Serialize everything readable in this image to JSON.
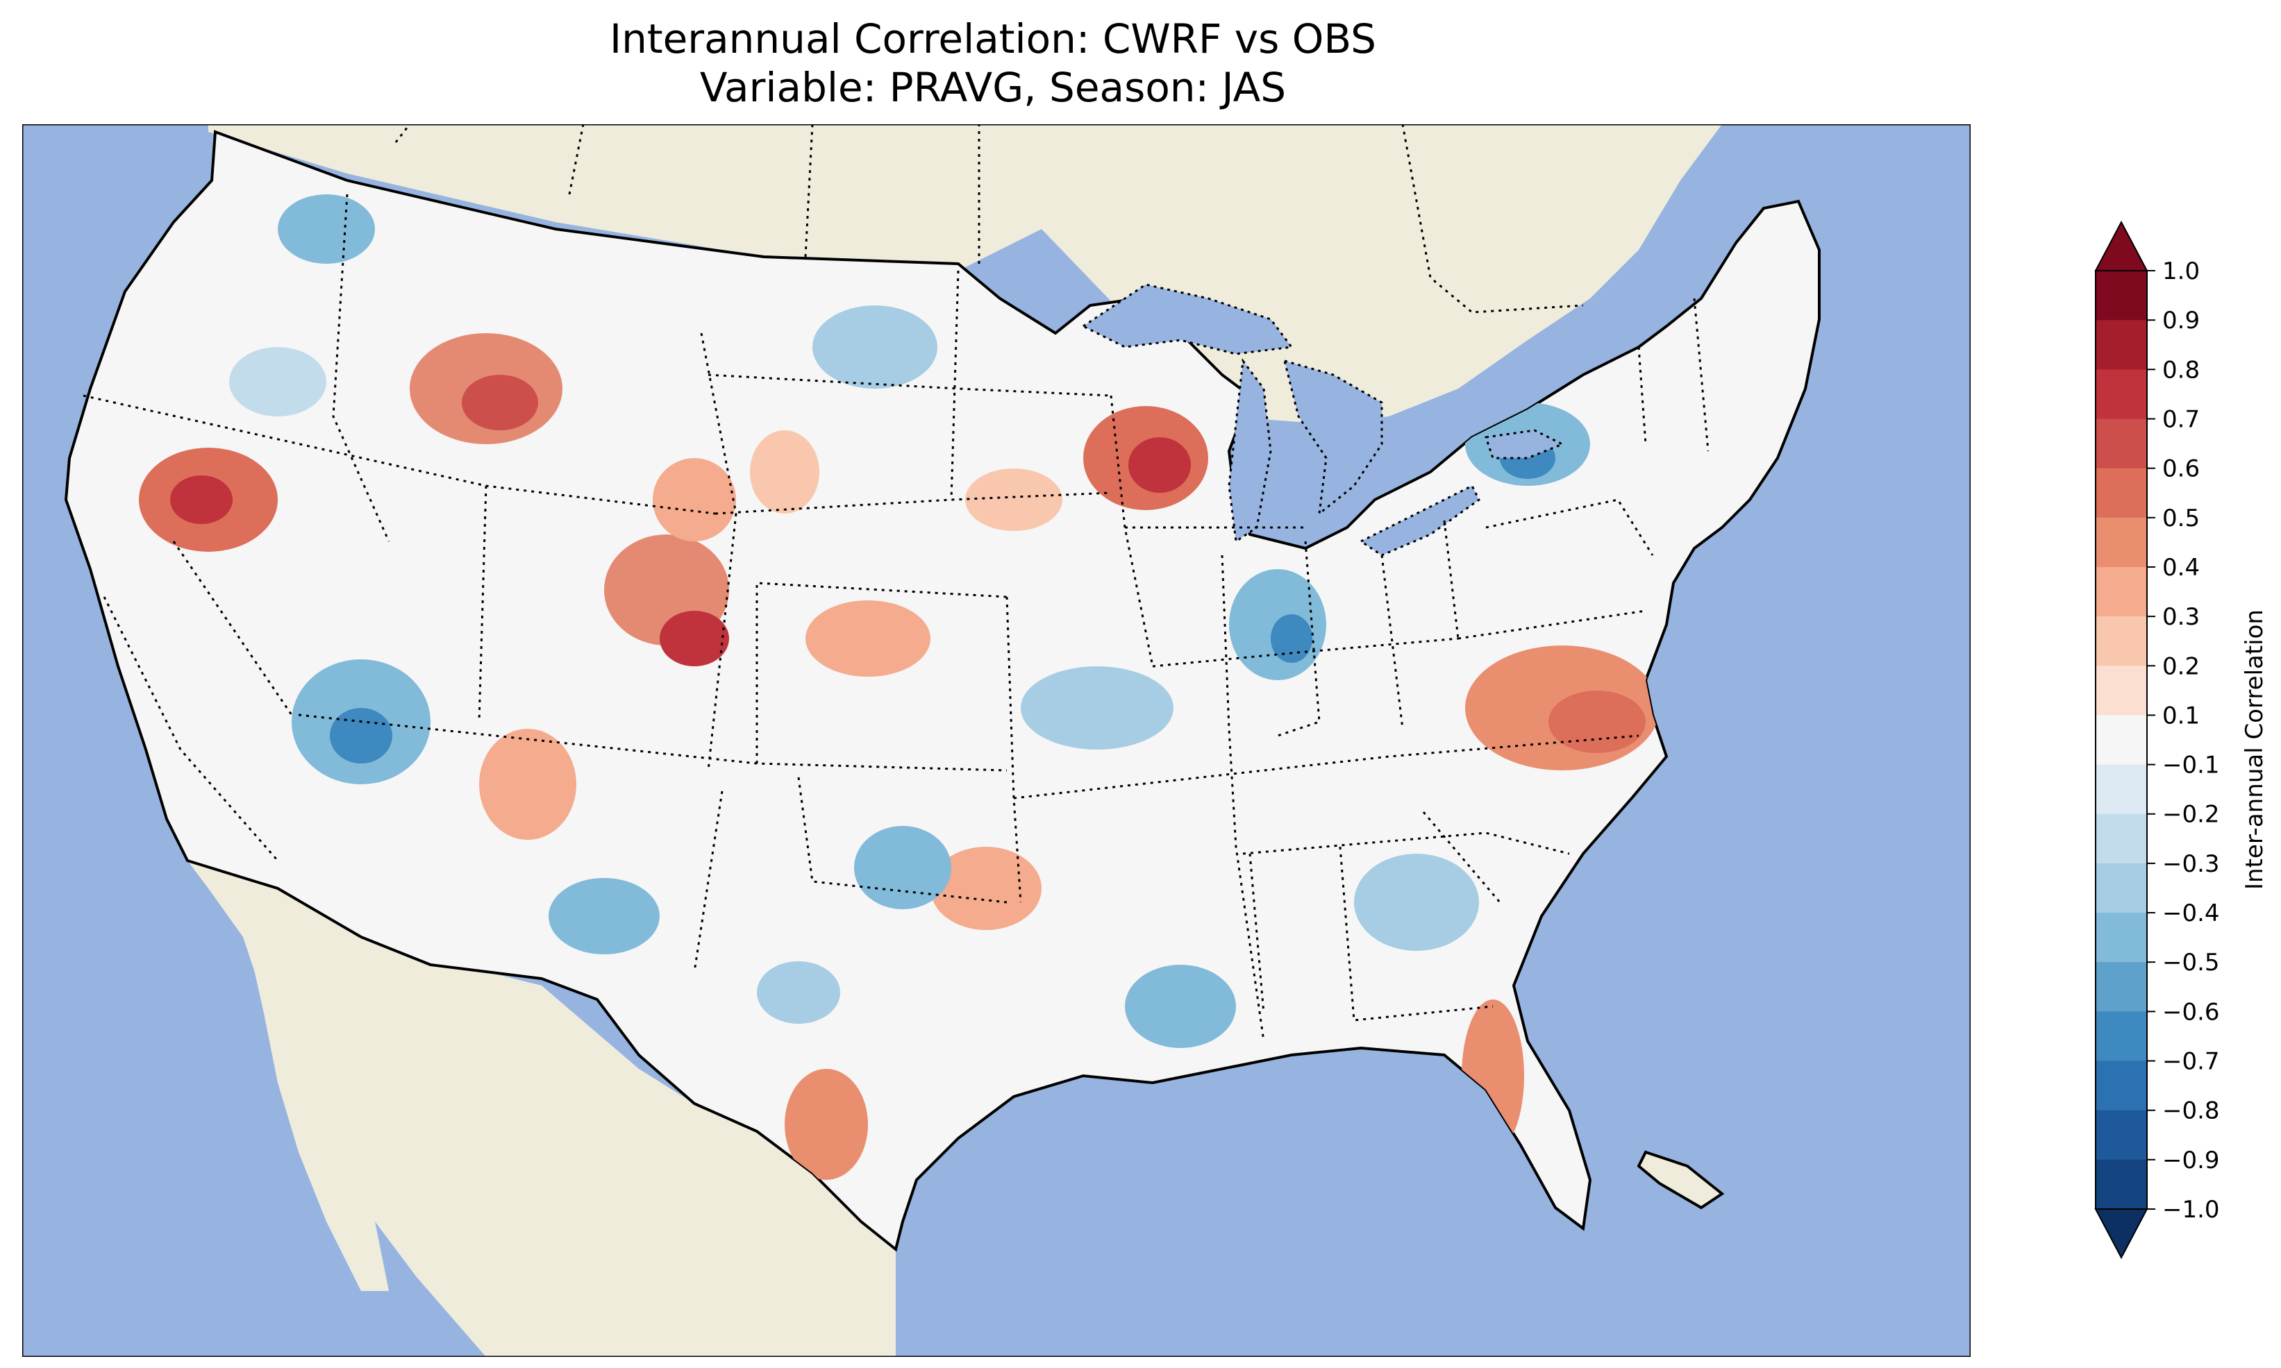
{
  "title": {
    "line1": "Interannual Correlation: CWRF vs OBS",
    "line2": "Variable: PRAVG, Season: JAS"
  },
  "colorbar": {
    "label": "Inter-annual Correlation",
    "ticks": [
      "1.0",
      "0.9",
      "0.8",
      "0.7",
      "0.6",
      "0.5",
      "0.4",
      "0.3",
      "0.2",
      "0.1",
      "−0.1",
      "−0.2",
      "−0.3",
      "−0.4",
      "−0.5",
      "−0.6",
      "−0.7",
      "−0.8",
      "−0.9",
      "−1.0"
    ],
    "colors_top_to_bottom": [
      "#7f0a1f",
      "#a51e2c",
      "#c0323c",
      "#cc4f4c",
      "#dc6e5a",
      "#ea8e70",
      "#f4ab8e",
      "#f9c7ae",
      "#fbe0d2",
      "#f6f6f6",
      "#dce9f2",
      "#c3dcec",
      "#a6cde3",
      "#82bad9",
      "#5ea2cc",
      "#3e89bf",
      "#2c71b1",
      "#1e5a9b",
      "#144480",
      "#0b3061"
    ],
    "extend": "both",
    "range": [
      -1.0,
      1.0
    ]
  },
  "map": {
    "projection": "Lambert conformal (CONUS)",
    "ocean_color": "#97b4e0",
    "land_color": "#efecdc",
    "border_color": "#000000"
  }
}
